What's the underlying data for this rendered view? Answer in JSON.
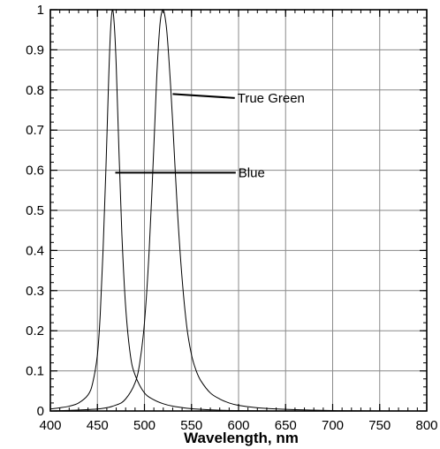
{
  "chart_data": {
    "type": "line",
    "title": "",
    "xlabel": "Wavelength, nm",
    "ylabel": "",
    "xlim": [
      400,
      800
    ],
    "ylim": [
      0,
      1
    ],
    "x_ticks": [
      400,
      450,
      500,
      550,
      600,
      650,
      700,
      750,
      800
    ],
    "y_ticks": [
      0,
      0.1,
      0.2,
      0.3,
      0.4,
      0.5,
      0.6,
      0.7,
      0.8,
      0.9,
      1
    ],
    "x_tick_labels": [
      "400",
      "450",
      "500",
      "550",
      "600",
      "650",
      "700",
      "750",
      "800"
    ],
    "y_tick_labels": [
      "0",
      "0.1",
      "0.2",
      "0.3",
      "0.4",
      "0.5",
      "0.6",
      "0.7",
      "0.8",
      "0.9",
      "1"
    ],
    "grid": true,
    "series": [
      {
        "name": "Blue",
        "x": [
          400,
          410,
          420,
          430,
          440,
          445,
          450,
          453,
          456,
          459,
          462,
          464,
          466,
          468,
          470,
          473,
          476,
          480,
          485,
          490,
          500,
          510,
          520,
          530,
          545,
          560,
          580,
          600,
          650,
          700,
          800
        ],
        "y": [
          0.005,
          0.008,
          0.012,
          0.02,
          0.04,
          0.07,
          0.14,
          0.24,
          0.4,
          0.6,
          0.83,
          0.95,
          1.0,
          0.96,
          0.86,
          0.64,
          0.44,
          0.26,
          0.14,
          0.09,
          0.045,
          0.028,
          0.018,
          0.012,
          0.007,
          0.004,
          0.002,
          0.001,
          0.0,
          0.0,
          0.0
        ]
      },
      {
        "name": "True Green",
        "x": [
          400,
          450,
          470,
          480,
          490,
          495,
          500,
          505,
          510,
          513,
          516,
          518,
          520,
          522,
          524,
          527,
          530,
          535,
          540,
          545,
          550,
          555,
          560,
          570,
          580,
          590,
          600,
          620,
          650,
          700,
          800
        ],
        "y": [
          0.0,
          0.005,
          0.015,
          0.03,
          0.07,
          0.12,
          0.22,
          0.4,
          0.66,
          0.83,
          0.95,
          0.99,
          1.0,
          0.98,
          0.94,
          0.84,
          0.72,
          0.5,
          0.33,
          0.21,
          0.14,
          0.1,
          0.075,
          0.045,
          0.03,
          0.02,
          0.014,
          0.008,
          0.004,
          0.001,
          0.0
        ]
      }
    ],
    "annotations": [
      {
        "text": "True Green",
        "from": [
          530,
          0.79
        ],
        "to": [
          596,
          0.78
        ]
      },
      {
        "text": "Blue",
        "from": [
          469,
          0.594
        ],
        "to": [
          597,
          0.594
        ]
      }
    ]
  }
}
